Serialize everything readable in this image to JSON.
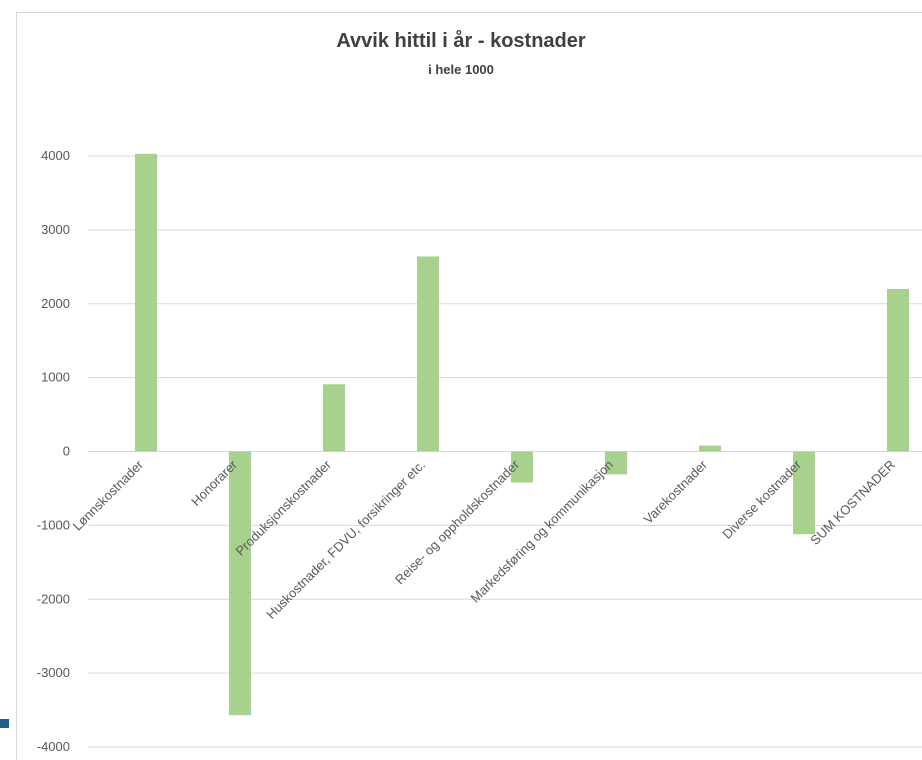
{
  "chart_data": {
    "type": "bar",
    "title": "Avvik hittil i år - kostnader",
    "subtitle": "i hele 1000",
    "xlabel": "",
    "ylabel": "",
    "ylim": [
      -4000,
      4000
    ],
    "yticks": [
      4000,
      3000,
      2000,
      1000,
      0,
      -1000,
      -2000,
      -3000,
      -4000
    ],
    "grid": true,
    "legend": "none",
    "bar_color": "#a9d18e",
    "categories": [
      "Lønnskostnader",
      "Honorarer",
      "Produksjonskostnader",
      "Huskostnader, FDVU, forsikringer etc.",
      "Reise- og oppholdskostnader",
      "Markedsføring og kommunikasjon",
      "Varekostnader",
      "Diverse kostnader",
      "SUM KOSTNADER"
    ],
    "values": [
      4030,
      -3570,
      910,
      2640,
      -420,
      -310,
      80,
      -1120,
      2200
    ]
  }
}
